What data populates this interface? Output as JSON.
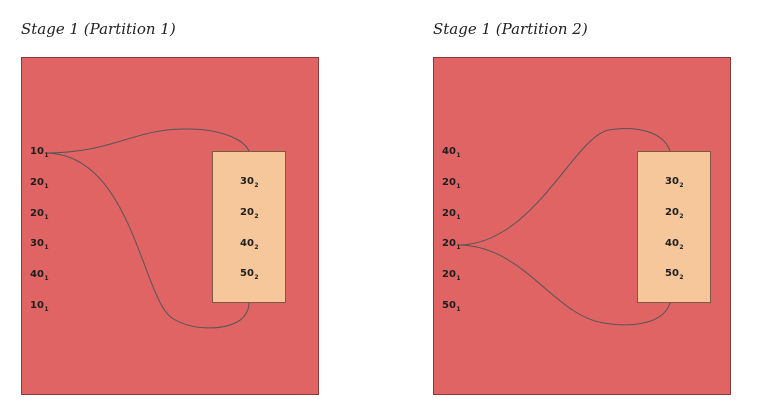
{
  "panels": [
    {
      "title": "Stage 1 (Partition 1)",
      "left_items": [
        {
          "value": "10",
          "sub": "1"
        },
        {
          "value": "20",
          "sub": "1"
        },
        {
          "value": "20",
          "sub": "1"
        },
        {
          "value": "30",
          "sub": "1"
        },
        {
          "value": "40",
          "sub": "1"
        },
        {
          "value": "10",
          "sub": "1"
        }
      ],
      "box_items": [
        {
          "value": "30",
          "sub": "2"
        },
        {
          "value": "20",
          "sub": "2"
        },
        {
          "value": "40",
          "sub": "2"
        },
        {
          "value": "50",
          "sub": "2"
        }
      ],
      "connections": [
        {
          "from_left_index": 0,
          "to": "box-top"
        },
        {
          "from_left_index": 0,
          "to": "box-bottom"
        }
      ]
    },
    {
      "title": "Stage 1 (Partition 2)",
      "left_items": [
        {
          "value": "40",
          "sub": "1"
        },
        {
          "value": "20",
          "sub": "1"
        },
        {
          "value": "20",
          "sub": "1"
        },
        {
          "value": "20",
          "sub": "1"
        },
        {
          "value": "20",
          "sub": "1"
        },
        {
          "value": "50",
          "sub": "1"
        }
      ],
      "box_items": [
        {
          "value": "30",
          "sub": "2"
        },
        {
          "value": "20",
          "sub": "2"
        },
        {
          "value": "40",
          "sub": "2"
        },
        {
          "value": "50",
          "sub": "2"
        }
      ],
      "connections": [
        {
          "from_left_index": 3,
          "to": "box-top"
        },
        {
          "from_left_index": 3,
          "to": "box-bottom"
        }
      ]
    }
  ],
  "colors": {
    "panel_fill": "#e06464",
    "box_fill": "#f6c79a",
    "line": "#555555",
    "text": "#1e1e1e"
  }
}
